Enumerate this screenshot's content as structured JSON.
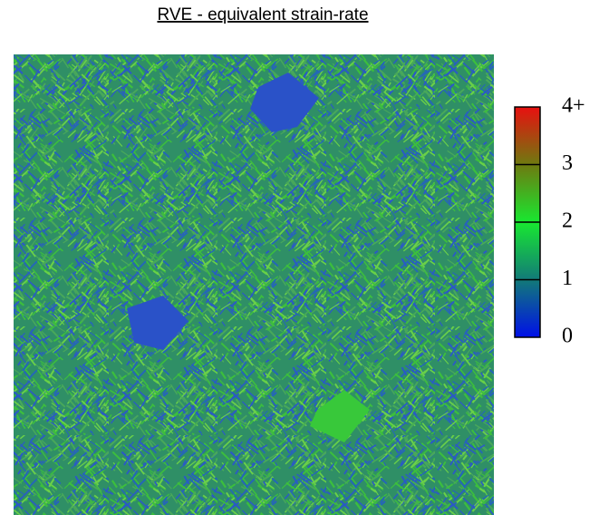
{
  "chart_data": {
    "type": "colormap",
    "title": "RVE - equivalent strain-rate",
    "colorbar": {
      "lim": [
        0,
        4
      ],
      "ticks": [
        0,
        1,
        2,
        3,
        {
          "value": 4,
          "label": "4+"
        }
      ],
      "colors": [
        "#0010e8",
        "#127a78",
        "#18e830",
        "#6e7a10",
        "#e81010"
      ]
    }
  }
}
